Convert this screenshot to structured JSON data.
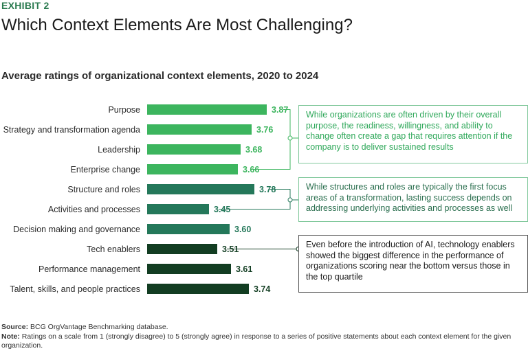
{
  "header": {
    "exhibit": "EXHIBIT 2",
    "title": "Which Context Elements Are Most Challenging?"
  },
  "chart_data": {
    "type": "bar",
    "orientation": "horizontal",
    "title": "Average ratings of organizational context elements, 2020 to 2024",
    "categories": [
      "Purpose",
      "Strategy and transformation agenda",
      "Leadership",
      "Enterprise change",
      "Structure and roles",
      "Activities and processes",
      "Decision making and governance",
      "Tech enablers",
      "Performance management",
      "Talent, skills, and people practices"
    ],
    "values": [
      3.87,
      3.76,
      3.68,
      3.66,
      3.78,
      3.45,
      3.6,
      3.51,
      3.61,
      3.74
    ],
    "value_labels": [
      "3.87",
      "3.76",
      "3.68",
      "3.66",
      "3.78",
      "3.45",
      "3.60",
      "3.51",
      "3.61",
      "3.74"
    ],
    "bar_colors": [
      "#3cb55e",
      "#3cb55e",
      "#3cb55e",
      "#3cb55e",
      "#24785a",
      "#24785a",
      "#24785a",
      "#123d22",
      "#123d22",
      "#123d22"
    ],
    "label_colors": [
      "#3cb55e",
      "#3cb55e",
      "#3cb55e",
      "#3cb55e",
      "#24785a",
      "#24785a",
      "#24785a",
      "#123d22",
      "#123d22",
      "#123d22"
    ],
    "xlim": [
      3.0,
      4.0
    ],
    "grid": false
  },
  "callouts": [
    {
      "text": "While organizations are often driven by their overall purpose, the readiness, willingness, and ability to change often create a gap that requires attention if the company is to deliver sustained results"
    },
    {
      "text": "While structures and roles are typically the first focus areas of a transformation, lasting success depends on addressing underlying activities and processes as well"
    },
    {
      "text": "Even before the introduction of AI, technology enablers showed the biggest difference in the performance of organizations scoring near the bottom versus those in the top quartile"
    }
  ],
  "footer": {
    "source_label": "Source:",
    "source_text": "BCG OrgVantage Benchmarking database.",
    "note_label": "Note:",
    "note_text": "Ratings on a scale from 1 (strongly disagree) to 5 (strongly agree) in response to a series of positive statements about each context element for the given organization."
  }
}
